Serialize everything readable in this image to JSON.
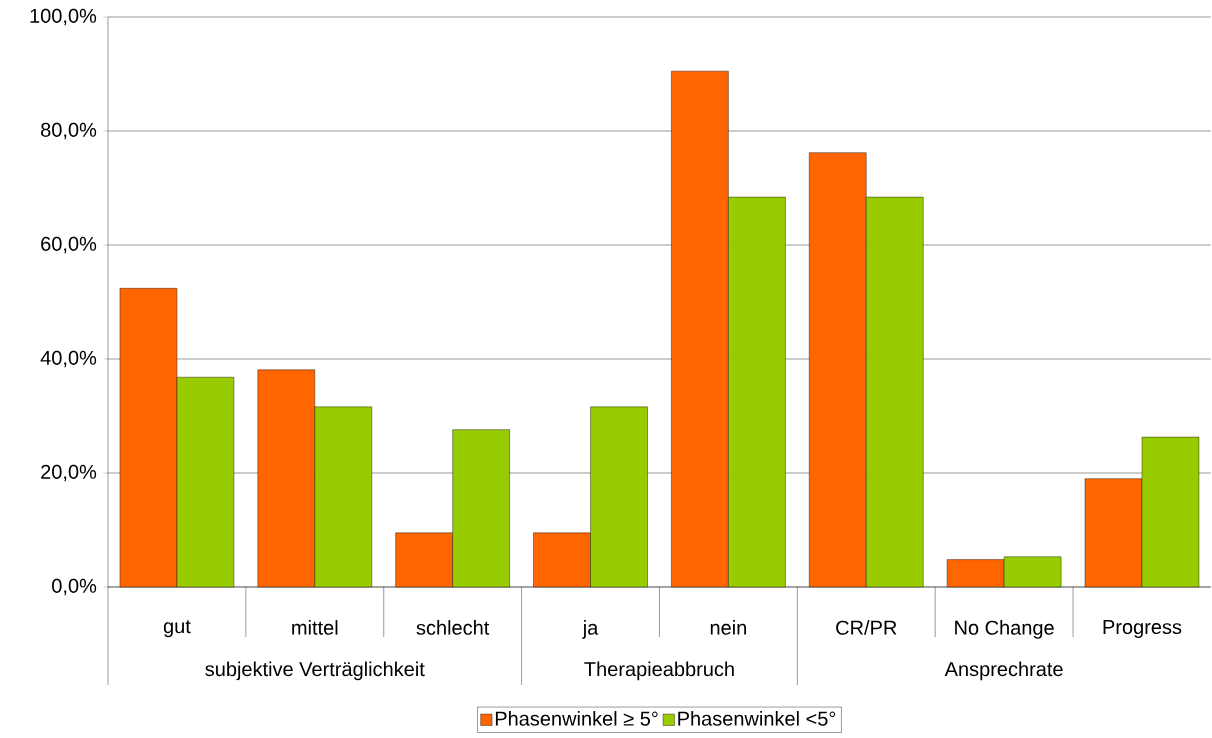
{
  "chart_data": {
    "type": "bar",
    "categories": [
      "gut",
      "mittel",
      "schlecht",
      "ja",
      "nein",
      "CR/PR",
      "No Change",
      "Progress"
    ],
    "series": [
      {
        "name": "Phasenwinkel ≥ 5°",
        "color": "#ff6600",
        "values": [
          52.4,
          38.1,
          9.5,
          9.5,
          90.5,
          76.2,
          4.8,
          19.0
        ]
      },
      {
        "name": "Phasenwinkel <5°",
        "color": "#99cc00",
        "values": [
          36.8,
          31.6,
          27.6,
          31.6,
          68.4,
          68.4,
          5.3,
          26.3
        ]
      }
    ],
    "annotations": [
      "subjektive Verträglichkeit",
      "Therapieabbruch",
      "Ansprechrate"
    ],
    "ylim": [
      0,
      100
    ],
    "yticks": [
      {
        "value": 0,
        "label": "0,0%"
      },
      {
        "value": 20,
        "label": "20,0%"
      },
      {
        "value": 40,
        "label": "40,0%"
      },
      {
        "value": 60,
        "label": "60,0%"
      },
      {
        "value": 80,
        "label": "80,0%"
      },
      {
        "value": 100,
        "label": "100,0%"
      }
    ],
    "grid": "y",
    "legend": "bottom"
  }
}
